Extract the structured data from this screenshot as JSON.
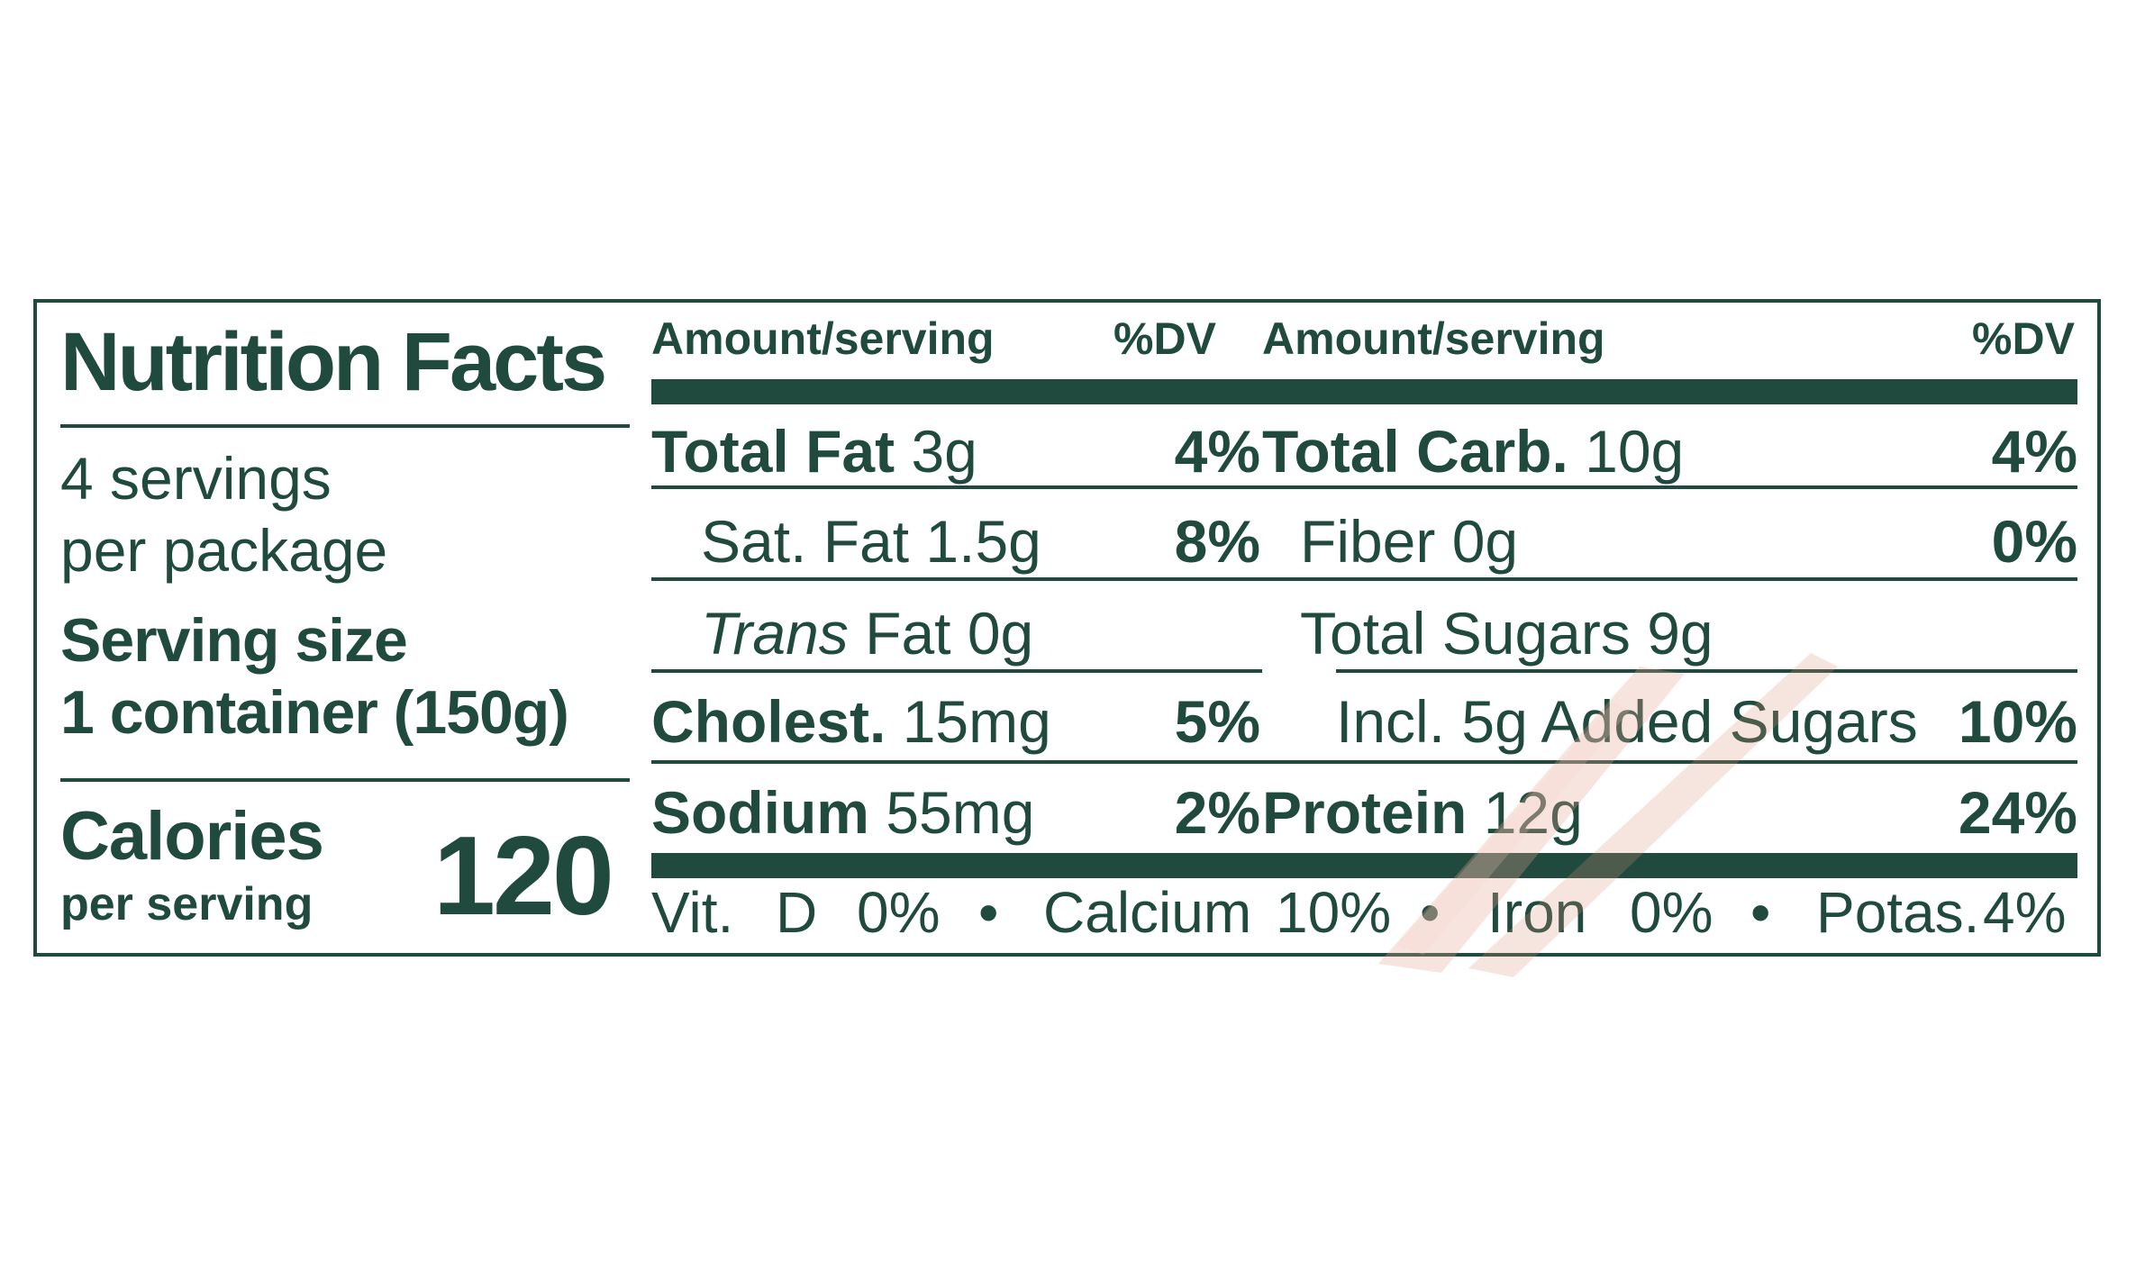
{
  "title": "Nutrition Facts",
  "servings_per_package": [
    "4 servings",
    "per package"
  ],
  "serving_size_label": "Serving size",
  "serving_size_value": "1 container (150g)",
  "calories_label": "Calories",
  "calories_sub": "per serving",
  "calories_value": "120",
  "columns": [
    {
      "header_amount": "Amount/serving",
      "header_dv": "%DV",
      "rows": [
        {
          "name": "Total Fat",
          "amount": "3g",
          "dv": "4%"
        },
        {
          "name": "Sat. Fat 1.5g",
          "amount": "",
          "dv": "8%"
        },
        {
          "name_italic": "Trans",
          "name": "Fat 0g",
          "amount": "",
          "dv": ""
        },
        {
          "name": "Cholest.",
          "amount": "15mg",
          "dv": "5%"
        },
        {
          "name": "Sodium",
          "amount": "55mg",
          "dv": "2%"
        }
      ]
    },
    {
      "header_amount": "Amount/serving",
      "header_dv": "%DV",
      "rows": [
        {
          "name": "Total Carb.",
          "amount": "10g",
          "dv": "4%"
        },
        {
          "name": "Fiber 0g",
          "amount": "",
          "dv": "0%"
        },
        {
          "name": "Total Sugars 9g",
          "amount": "",
          "dv": ""
        },
        {
          "name": "Incl. 5g Added Sugars",
          "amount": "",
          "dv": "10%"
        },
        {
          "name": "Protein",
          "amount": "12g",
          "dv": "24%"
        }
      ]
    }
  ],
  "footer": {
    "items": [
      "Vit.",
      "D",
      "0%",
      "•",
      "Calcium",
      "10%",
      "•",
      "Iron",
      "0%",
      "•",
      "Potas.",
      "4%"
    ]
  },
  "colors": {
    "ink": "#1f4a3d",
    "brush": "#d9907c"
  }
}
